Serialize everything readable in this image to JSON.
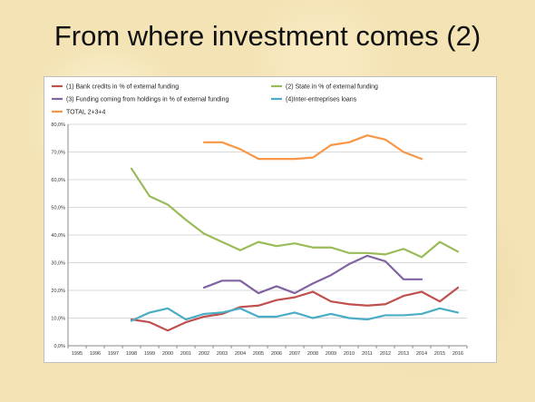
{
  "slide": {
    "title": "From where investment comes (2)"
  },
  "chart_data": {
    "type": "line",
    "x": [
      1995,
      1996,
      1997,
      1998,
      1999,
      2000,
      2001,
      2002,
      2003,
      2004,
      2005,
      2006,
      2007,
      2008,
      2009,
      2010,
      2011,
      2012,
      2013,
      2014,
      2015,
      2016
    ],
    "ylim": [
      0,
      80
    ],
    "yticks": [
      "0,0%",
      "10,0%",
      "20,0%",
      "30,0%",
      "40,0%",
      "50,0%",
      "60,0%",
      "70,0%",
      "80,0%"
    ],
    "grid": true,
    "legend_position": "top",
    "series": [
      {
        "name": "(1) Bank credits in % of external funding",
        "color": "#c0504d",
        "values": [
          null,
          null,
          null,
          9.5,
          8.5,
          5.5,
          8.5,
          10.5,
          11.5,
          14,
          14.5,
          16.5,
          17.5,
          19.5,
          16,
          15,
          14.5,
          15,
          18,
          19.5,
          16,
          21
        ]
      },
      {
        "name": "(2) State in % of external funding",
        "color": "#9bbb59",
        "values": [
          null,
          null,
          null,
          64,
          54,
          51,
          45.5,
          40.5,
          37.5,
          34.5,
          37.5,
          36,
          37,
          35.5,
          35.5,
          33.5,
          33.5,
          33,
          35,
          32,
          37.5,
          34
        ]
      },
      {
        "name": "(3) Funding coming from holdings in % of external funding",
        "color": "#8064a2",
        "values": [
          null,
          null,
          null,
          null,
          null,
          null,
          null,
          21,
          23.5,
          23.5,
          19,
          21.5,
          19,
          22.5,
          25.5,
          29.5,
          32.5,
          30.5,
          24,
          24,
          null,
          null
        ]
      },
      {
        "name": "(4)Inter-entreprises loans",
        "color": "#4bacc6",
        "values": [
          null,
          null,
          null,
          9,
          12,
          13.5,
          9.5,
          11.5,
          12,
          13.5,
          10.5,
          10.5,
          12,
          10,
          11.5,
          10,
          9.5,
          11,
          11,
          11.5,
          13.5,
          12
        ]
      },
      {
        "name": "TOTAL 2+3+4",
        "color": "#f79646",
        "values": [
          null,
          null,
          null,
          null,
          null,
          null,
          null,
          73.5,
          73.5,
          71,
          67.5,
          67.5,
          67.5,
          68,
          72.5,
          73.5,
          76,
          74.5,
          70,
          67.5,
          null,
          null
        ]
      }
    ]
  }
}
